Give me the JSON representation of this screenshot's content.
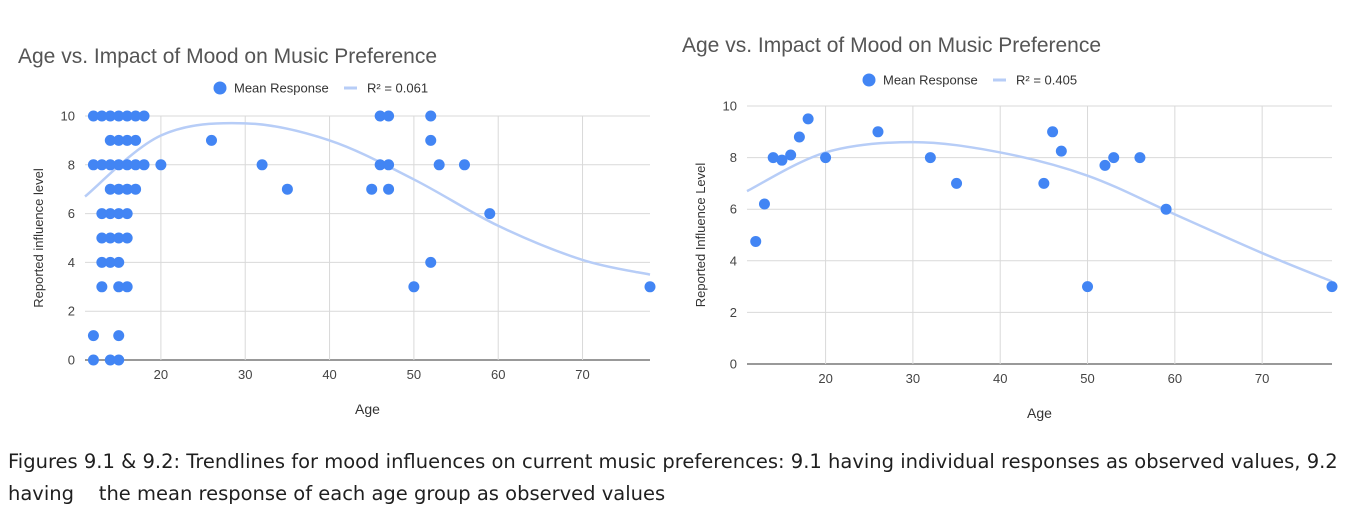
{
  "caption": "Figures 9.1 & 9.2: Trendlines for mood influences on current music preferences: 9.1 having individual responses as observed values, 9.2 having    the mean response of each age group as observed values",
  "colors": {
    "point": "#4285f4",
    "trend": "#b7cdf7",
    "grid": "#d9d9d9",
    "title": "#555555",
    "axis_text": "#444444"
  },
  "chart_data": [
    {
      "type": "scatter",
      "title": "Age vs. Impact of Mood on Music Preference",
      "xlabel": "Age",
      "ylabel": "Reported influence level",
      "xlim": [
        11,
        78
      ],
      "ylim": [
        0,
        10
      ],
      "xticks": [
        20,
        30,
        40,
        50,
        60,
        70
      ],
      "yticks": [
        0,
        2,
        4,
        6,
        8,
        10
      ],
      "grid": true,
      "legend_position": "top",
      "series": [
        {
          "name": "Mean Response",
          "points": [
            [
              12,
              0
            ],
            [
              14,
              0
            ],
            [
              15,
              0
            ],
            [
              12,
              1
            ],
            [
              15,
              1
            ],
            [
              13,
              3
            ],
            [
              15,
              3
            ],
            [
              16,
              3
            ],
            [
              13,
              4
            ],
            [
              14,
              4
            ],
            [
              15,
              4
            ],
            [
              13,
              5
            ],
            [
              14,
              5
            ],
            [
              15,
              5
            ],
            [
              16,
              5
            ],
            [
              13,
              6
            ],
            [
              14,
              6
            ],
            [
              15,
              6
            ],
            [
              16,
              6
            ],
            [
              14,
              7
            ],
            [
              15,
              7
            ],
            [
              16,
              7
            ],
            [
              17,
              7
            ],
            [
              12,
              8
            ],
            [
              13,
              8
            ],
            [
              14,
              8
            ],
            [
              15,
              8
            ],
            [
              16,
              8
            ],
            [
              17,
              8
            ],
            [
              18,
              8
            ],
            [
              14,
              9
            ],
            [
              15,
              9
            ],
            [
              16,
              9
            ],
            [
              17,
              9
            ],
            [
              12,
              10
            ],
            [
              13,
              10
            ],
            [
              14,
              10
            ],
            [
              15,
              10
            ],
            [
              16,
              10
            ],
            [
              17,
              10
            ],
            [
              18,
              10
            ],
            [
              20,
              8
            ],
            [
              26,
              9
            ],
            [
              32,
              8
            ],
            [
              35,
              7
            ],
            [
              45,
              7
            ],
            [
              46,
              8
            ],
            [
              46,
              10
            ],
            [
              47,
              8
            ],
            [
              47,
              7
            ],
            [
              47,
              10
            ],
            [
              50,
              3
            ],
            [
              52,
              10
            ],
            [
              52,
              9
            ],
            [
              52,
              4
            ],
            [
              53,
              8
            ],
            [
              56,
              8
            ],
            [
              59,
              6
            ],
            [
              78,
              3
            ]
          ]
        }
      ],
      "trendline": {
        "name": "R² = 0.061",
        "points": [
          [
            11,
            6.7
          ],
          [
            20,
            9.2
          ],
          [
            30,
            9.7
          ],
          [
            40,
            9.0
          ],
          [
            50,
            7.4
          ],
          [
            60,
            5.5
          ],
          [
            70,
            4.1
          ],
          [
            78,
            3.5
          ]
        ]
      }
    },
    {
      "type": "scatter",
      "title": "Age vs. Impact of Mood on Music Preference",
      "xlabel": "Age",
      "ylabel": "Reported Influence Level",
      "xlim": [
        11,
        78
      ],
      "ylim": [
        0,
        10
      ],
      "xticks": [
        20,
        30,
        40,
        50,
        60,
        70
      ],
      "yticks": [
        0,
        2,
        4,
        6,
        8,
        10
      ],
      "grid": true,
      "legend_position": "top",
      "series": [
        {
          "name": "Mean Response",
          "points": [
            [
              12,
              4.75
            ],
            [
              13,
              6.2
            ],
            [
              14,
              8.0
            ],
            [
              15,
              7.9
            ],
            [
              16,
              8.1
            ],
            [
              17,
              8.8
            ],
            [
              18,
              9.5
            ],
            [
              20,
              8.0
            ],
            [
              26,
              9.0
            ],
            [
              32,
              8.0
            ],
            [
              35,
              7.0
            ],
            [
              45,
              7.0
            ],
            [
              46,
              9.0
            ],
            [
              47,
              8.25
            ],
            [
              50,
              3.0
            ],
            [
              52,
              7.7
            ],
            [
              53,
              8.0
            ],
            [
              56,
              8.0
            ],
            [
              59,
              6.0
            ],
            [
              78,
              3.0
            ]
          ]
        }
      ],
      "trendline": {
        "name": "R² = 0.405",
        "points": [
          [
            11,
            6.7
          ],
          [
            20,
            8.2
          ],
          [
            30,
            8.6
          ],
          [
            40,
            8.2
          ],
          [
            50,
            7.3
          ],
          [
            60,
            5.8
          ],
          [
            70,
            4.3
          ],
          [
            78,
            3.2
          ]
        ]
      }
    }
  ]
}
